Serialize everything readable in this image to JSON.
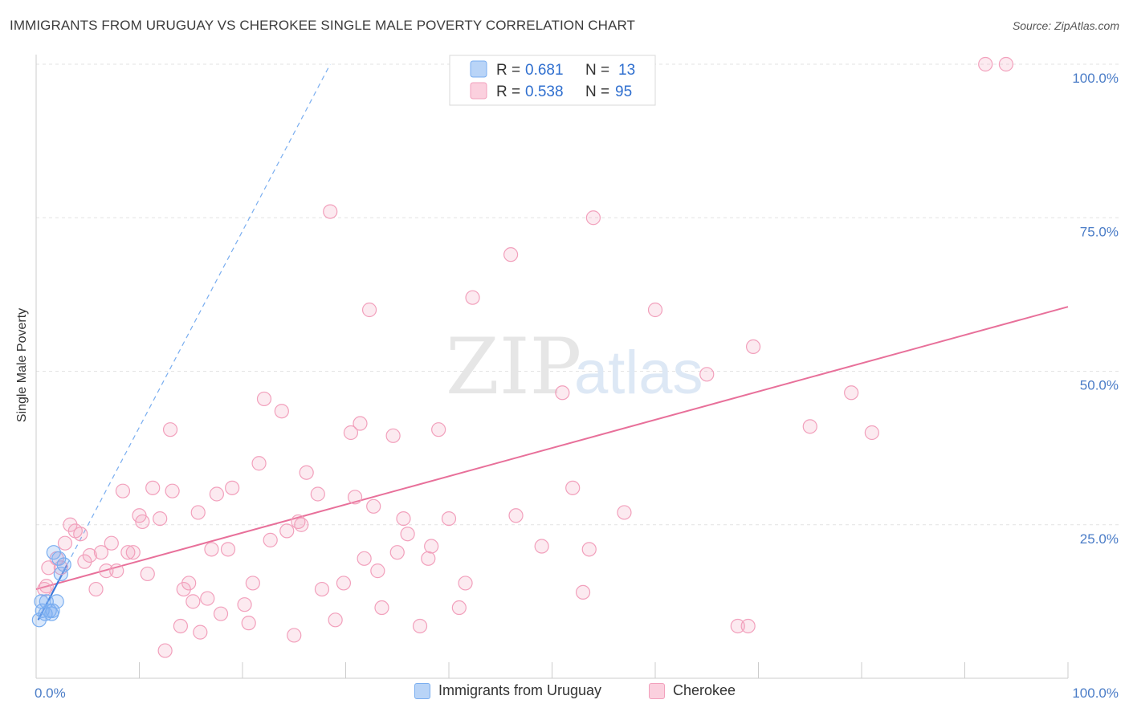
{
  "title": "IMMIGRANTS FROM URUGUAY VS CHEROKEE SINGLE MALE POVERTY CORRELATION CHART",
  "source": "Source: ZipAtlas.com",
  "watermark": {
    "zip": "ZIP",
    "atlas": "atlas"
  },
  "chart_data": {
    "type": "scatter",
    "xlabel": "",
    "ylabel": "Single Male Poverty",
    "xlim": [
      0,
      100
    ],
    "ylim": [
      0,
      100
    ],
    "x_tick_labels": [
      "0.0%",
      "100.0%"
    ],
    "y_ticks": [
      25,
      50,
      75,
      100
    ],
    "y_tick_labels": [
      "25.0%",
      "50.0%",
      "75.0%",
      "100.0%"
    ],
    "grid": true,
    "legend_position": "top-center",
    "series": [
      {
        "name": "Immigrants from Uruguay",
        "color": "#7aaef0",
        "r_label": "R =",
        "r_value": "0.681",
        "n_label": "N =",
        "n_value": "13",
        "trend": {
          "x0": 0.2,
          "y0": 9.5,
          "x1": 3.0,
          "y1": 18.5,
          "extended_to": [
            28.5,
            100
          ]
        },
        "points": [
          [
            0.3,
            9.5
          ],
          [
            0.6,
            11
          ],
          [
            0.9,
            10.5
          ],
          [
            1.0,
            12.5
          ],
          [
            1.3,
            11
          ],
          [
            1.5,
            10.5
          ],
          [
            1.6,
            11
          ],
          [
            1.7,
            20.5
          ],
          [
            2.0,
            12.5
          ],
          [
            2.2,
            19.5
          ],
          [
            2.4,
            17
          ],
          [
            2.7,
            18.5
          ],
          [
            0.5,
            12.5
          ]
        ]
      },
      {
        "name": "Cherokee",
        "color": "#f2a0bc",
        "r_label": "R =",
        "r_value": "0.538",
        "n_label": "N =",
        "n_value": "95",
        "trend": {
          "x0": 0,
          "y0": 14.5,
          "x1": 100,
          "y1": 60.5
        },
        "points": [
          [
            0.8,
            14.5
          ],
          [
            1.0,
            15
          ],
          [
            1.2,
            18
          ],
          [
            2.0,
            19.5
          ],
          [
            2.4,
            18
          ],
          [
            2.8,
            22
          ],
          [
            3.3,
            25
          ],
          [
            3.8,
            24
          ],
          [
            4.3,
            23.5
          ],
          [
            4.7,
            19
          ],
          [
            5.2,
            20
          ],
          [
            5.8,
            14.5
          ],
          [
            6.3,
            20.5
          ],
          [
            6.8,
            17.5
          ],
          [
            7.3,
            22
          ],
          [
            7.8,
            17.5
          ],
          [
            8.4,
            30.5
          ],
          [
            8.9,
            20.5
          ],
          [
            9.4,
            20.5
          ],
          [
            10.0,
            26.5
          ],
          [
            10.3,
            25.5
          ],
          [
            10.8,
            17
          ],
          [
            11.3,
            31
          ],
          [
            12.0,
            26
          ],
          [
            12.5,
            4.5
          ],
          [
            13.0,
            40.5
          ],
          [
            13.2,
            30.5
          ],
          [
            14.0,
            8.5
          ],
          [
            14.3,
            14.5
          ],
          [
            14.8,
            15.5
          ],
          [
            15.2,
            12.5
          ],
          [
            15.7,
            27
          ],
          [
            15.9,
            7.5
          ],
          [
            16.6,
            13
          ],
          [
            17.0,
            21
          ],
          [
            17.5,
            30
          ],
          [
            17.9,
            10.5
          ],
          [
            18.6,
            21
          ],
          [
            19.0,
            31
          ],
          [
            20.2,
            12
          ],
          [
            20.6,
            9
          ],
          [
            21.0,
            15.5
          ],
          [
            21.6,
            35
          ],
          [
            22.1,
            45.5
          ],
          [
            22.7,
            22.5
          ],
          [
            23.8,
            43.5
          ],
          [
            24.3,
            24
          ],
          [
            25.0,
            7
          ],
          [
            25.4,
            25.5
          ],
          [
            25.7,
            25
          ],
          [
            26.2,
            33.5
          ],
          [
            27.3,
            30
          ],
          [
            27.7,
            14.5
          ],
          [
            28.5,
            76
          ],
          [
            29.0,
            9.5
          ],
          [
            29.8,
            15.5
          ],
          [
            30.5,
            40
          ],
          [
            30.9,
            29.5
          ],
          [
            31.4,
            41.5
          ],
          [
            31.8,
            19.5
          ],
          [
            32.3,
            60
          ],
          [
            32.7,
            28
          ],
          [
            33.1,
            17.5
          ],
          [
            33.5,
            11.5
          ],
          [
            34.6,
            39.5
          ],
          [
            35.0,
            20.5
          ],
          [
            35.6,
            26
          ],
          [
            36.0,
            23.5
          ],
          [
            37.2,
            8.5
          ],
          [
            38.0,
            19.5
          ],
          [
            38.3,
            21.5
          ],
          [
            39.0,
            40.5
          ],
          [
            40.0,
            26
          ],
          [
            41.0,
            11.5
          ],
          [
            41.6,
            15.5
          ],
          [
            42.3,
            62
          ],
          [
            46.0,
            69
          ],
          [
            46.5,
            26.5
          ],
          [
            49.0,
            21.5
          ],
          [
            51.0,
            46.5
          ],
          [
            52.0,
            31
          ],
          [
            53.0,
            14
          ],
          [
            53.6,
            21
          ],
          [
            54.0,
            75
          ],
          [
            57.0,
            27
          ],
          [
            60.0,
            60
          ],
          [
            65.0,
            49.5
          ],
          [
            68.0,
            8.5
          ],
          [
            69.0,
            8.5
          ],
          [
            69.5,
            54
          ],
          [
            75.0,
            41
          ],
          [
            79.0,
            46.5
          ],
          [
            81.0,
            40
          ],
          [
            92.0,
            100
          ],
          [
            94.0,
            100
          ]
        ]
      }
    ]
  }
}
